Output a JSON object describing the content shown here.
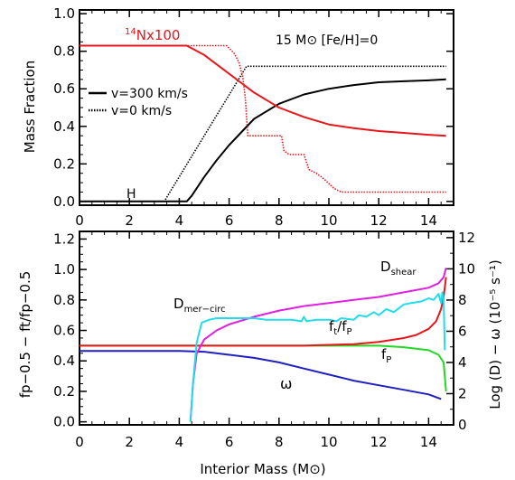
{
  "chart_data": [
    {
      "type": "line",
      "panel": "top",
      "xlim": [
        0,
        15
      ],
      "ylim": [
        -0.02,
        1.02
      ],
      "xlabel": "",
      "ylabel": "Mass Fraction",
      "xticks": [
        "0",
        "2",
        "4",
        "6",
        "8",
        "10",
        "12",
        "14"
      ],
      "yticks": [
        "0.0",
        "0.2",
        "0.4",
        "0.6",
        "0.8",
        "1.0"
      ],
      "annotation_main": "15 M⊙  [Fe/H]=0",
      "label_h": "H",
      "label_n_sup": "14",
      "label_n": "Nx100",
      "legend": [
        {
          "label": "v=300 km/s",
          "style": "solid"
        },
        {
          "label": "v=0 km/s",
          "style": "dotted"
        }
      ],
      "series": [
        {
          "color": "#000000",
          "dash": "solid",
          "x": [
            0,
            4.3,
            4.5,
            5.0,
            5.5,
            6.0,
            6.5,
            7.0,
            8.0,
            9.0,
            10.0,
            11.0,
            12.0,
            13.0,
            14.0,
            14.7
          ],
          "y": [
            0.0,
            0.0,
            0.03,
            0.13,
            0.22,
            0.3,
            0.37,
            0.44,
            0.52,
            0.57,
            0.6,
            0.62,
            0.635,
            0.64,
            0.645,
            0.65
          ]
        },
        {
          "color": "#000000",
          "dash": "dotted",
          "x": [
            0,
            3.4,
            6.7,
            14.7
          ],
          "y": [
            0.0,
            0.0,
            0.72,
            0.72
          ]
        },
        {
          "color": "#e8161b",
          "dash": "solid",
          "x": [
            0,
            4.3,
            5.0,
            5.5,
            6.0,
            6.5,
            7.0,
            7.5,
            8.0,
            9.0,
            10.0,
            11.0,
            12.0,
            13.0,
            14.0,
            14.7
          ],
          "y": [
            0.83,
            0.83,
            0.78,
            0.73,
            0.68,
            0.63,
            0.58,
            0.54,
            0.5,
            0.45,
            0.41,
            0.39,
            0.375,
            0.365,
            0.355,
            0.35
          ]
        },
        {
          "color": "#e8161b",
          "dash": "dotted",
          "x": [
            0,
            5.9,
            6.2,
            6.4,
            6.55,
            6.65,
            6.75,
            8.1,
            8.2,
            8.4,
            8.6,
            9.0,
            9.2,
            9.5,
            9.8,
            10.2,
            10.5,
            14.7
          ],
          "y": [
            0.83,
            0.83,
            0.79,
            0.74,
            0.66,
            0.55,
            0.35,
            0.35,
            0.27,
            0.25,
            0.25,
            0.25,
            0.17,
            0.15,
            0.12,
            0.07,
            0.05,
            0.05
          ]
        }
      ]
    },
    {
      "type": "line",
      "panel": "bottom",
      "xlim": [
        0,
        15
      ],
      "ylim": [
        -0.02,
        1.25
      ],
      "y2lim": [
        0,
        12.4
      ],
      "xlabel": "Interior Mass (M⊙)",
      "ylabel_left": "fp−0.5  −  ft/fp−0.5",
      "ylabel_right": "Log (D) − ω (10⁻⁵ s⁻¹)",
      "xticks": [
        "0",
        "2",
        "4",
        "6",
        "8",
        "10",
        "12",
        "14"
      ],
      "yticks": [
        "0.0",
        "0.2",
        "0.4",
        "0.6",
        "0.8",
        "1.0",
        "1.2"
      ],
      "y2ticks": [
        "0",
        "2",
        "4",
        "6",
        "8",
        "10",
        "12"
      ],
      "labels": {
        "d_mer": "D",
        "d_mer_sub": "mer−circ",
        "d_shear": "D",
        "d_shear_sub": "shear",
        "ftfp_a": "f",
        "ftfp_a_sub": "t",
        "ftfp_b": "/f",
        "ftfp_b_sub": "P",
        "fp": "f",
        "fp_sub": "P",
        "omega": "ω"
      },
      "series": [
        {
          "color": "#2020c0",
          "axis": "left",
          "x": [
            0,
            4.0,
            5.0,
            6.0,
            7.0,
            8.0,
            9.0,
            10.0,
            11.0,
            12.0,
            13.0,
            14.0,
            14.5
          ],
          "y": [
            0.465,
            0.465,
            0.46,
            0.44,
            0.42,
            0.39,
            0.35,
            0.31,
            0.27,
            0.24,
            0.21,
            0.18,
            0.15
          ]
        },
        {
          "color": "#22d822",
          "axis": "left",
          "x": [
            0,
            8.0,
            10.0,
            12.0,
            13.0,
            14.0,
            14.4,
            14.6,
            14.7
          ],
          "y": [
            0.5,
            0.5,
            0.5,
            0.5,
            0.49,
            0.47,
            0.44,
            0.39,
            0.2
          ]
        },
        {
          "color": "#e8161b",
          "axis": "left",
          "x": [
            0,
            9.0,
            10.0,
            11.0,
            12.0,
            13.0,
            13.5,
            14.0,
            14.3,
            14.5,
            14.6,
            14.7
          ],
          "y": [
            0.5,
            0.5,
            0.505,
            0.51,
            0.525,
            0.55,
            0.57,
            0.61,
            0.66,
            0.74,
            0.82,
            0.95
          ]
        },
        {
          "color": "#e020e0",
          "axis": "left",
          "x": [
            4.45,
            4.55,
            4.7,
            5.0,
            5.5,
            6.0,
            7.0,
            8.0,
            9.0,
            10.0,
            11.0,
            12.0,
            13.0,
            14.0,
            14.4,
            14.6,
            14.7
          ],
          "y": [
            0.0,
            0.25,
            0.45,
            0.54,
            0.6,
            0.64,
            0.69,
            0.73,
            0.76,
            0.78,
            0.8,
            0.82,
            0.85,
            0.88,
            0.91,
            0.95,
            1.01
          ]
        },
        {
          "color": "#22dce8",
          "axis": "left",
          "x": [
            4.45,
            4.55,
            4.7,
            4.9,
            5.2,
            5.5,
            6.0,
            6.5,
            7.0,
            7.5,
            8.0,
            8.5,
            8.9,
            9.0,
            9.1,
            9.5,
            10.0,
            10.3,
            10.5,
            11.0,
            11.2,
            11.5,
            11.8,
            12.0,
            12.3,
            12.6,
            13.0,
            13.3,
            13.7,
            14.0,
            14.2,
            14.4,
            14.5,
            14.55,
            14.6,
            14.65
          ],
          "y": [
            0.0,
            0.25,
            0.52,
            0.65,
            0.67,
            0.68,
            0.68,
            0.68,
            0.68,
            0.67,
            0.67,
            0.67,
            0.66,
            0.69,
            0.66,
            0.67,
            0.67,
            0.66,
            0.68,
            0.67,
            0.7,
            0.69,
            0.72,
            0.7,
            0.74,
            0.72,
            0.77,
            0.78,
            0.79,
            0.81,
            0.8,
            0.84,
            0.78,
            0.85,
            0.81,
            0.47
          ]
        }
      ]
    }
  ]
}
